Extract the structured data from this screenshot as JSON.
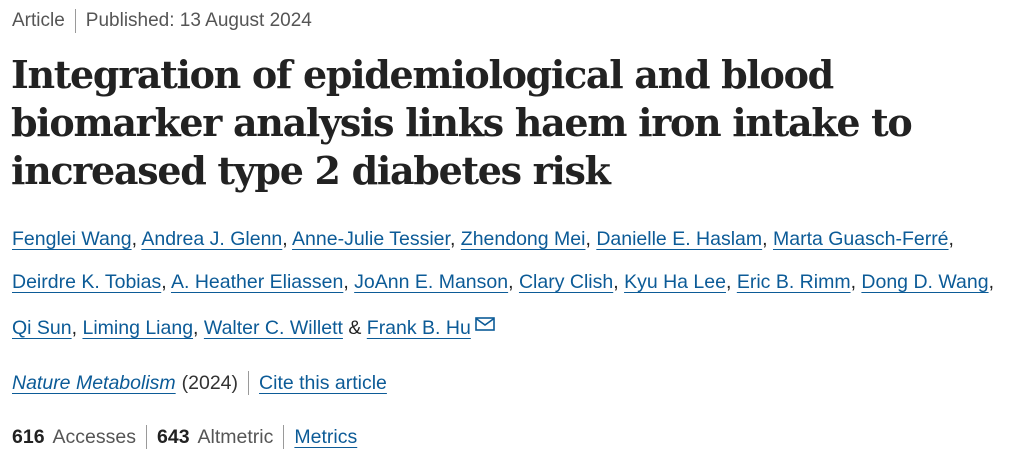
{
  "header": {
    "article_type": "Article",
    "published": "Published: 13 August 2024"
  },
  "title": "Integration of epidemiological and blood biomarker analysis links haem iron intake to increased type 2 diabetes risk",
  "authors": [
    {
      "name": "Fenglei Wang"
    },
    {
      "name": "Andrea J. Glenn"
    },
    {
      "name": "Anne-Julie Tessier"
    },
    {
      "name": "Zhendong Mei"
    },
    {
      "name": "Danielle E. Haslam"
    },
    {
      "name": "Marta Guasch-Ferré"
    },
    {
      "name": "Deirdre K. Tobias"
    },
    {
      "name": "A. Heather Eliassen"
    },
    {
      "name": "JoAnn E. Manson"
    },
    {
      "name": "Clary Clish"
    },
    {
      "name": "Kyu Ha Lee"
    },
    {
      "name": "Eric B. Rimm"
    },
    {
      "name": "Dong D. Wang"
    },
    {
      "name": "Qi Sun"
    },
    {
      "name": "Liming Liang"
    },
    {
      "name": "Walter C. Willett"
    },
    {
      "name": "Frank B. Hu",
      "corresponding": true
    }
  ],
  "author_separators": {
    "comma": ", ",
    "last": " & "
  },
  "publication": {
    "journal": "Nature Metabolism",
    "year": "(2024)",
    "cite_label": "Cite this article"
  },
  "metrics": {
    "accesses_value": "616",
    "accesses_label": "Accesses",
    "altmetric_value": "643",
    "altmetric_label": "Altmetric",
    "metrics_link": "Metrics"
  },
  "icons": {
    "corresponding_author": "mail-icon"
  },
  "colors": {
    "link": "#0c5b97",
    "text": "#222222",
    "muted": "#555555"
  }
}
